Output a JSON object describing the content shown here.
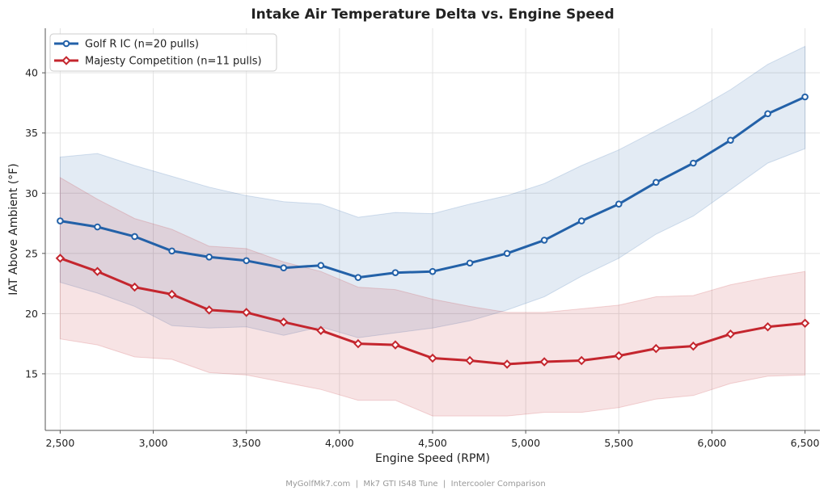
{
  "chart_data": {
    "type": "line",
    "title": "Intake Air Temperature Delta vs. Engine Speed",
    "xlabel": "Engine Speed (RPM)",
    "ylabel": "IAT Above Ambient (°F)",
    "xlim": [
      2420,
      6580
    ],
    "ylim": [
      10.3,
      43.7
    ],
    "x_ticks": [
      2500,
      3000,
      3500,
      4000,
      4500,
      5000,
      5500,
      6000,
      6500
    ],
    "x_tick_labels": [
      "2,500",
      "3,000",
      "3,500",
      "4,000",
      "4,500",
      "5,000",
      "5,500",
      "6,000",
      "6,500"
    ],
    "y_ticks": [
      15,
      20,
      25,
      30,
      35,
      40
    ],
    "y_tick_labels": [
      "15",
      "20",
      "25",
      "30",
      "35",
      "40"
    ],
    "grid": true,
    "legend_position": "top-left",
    "x": [
      2500,
      2700,
      2900,
      3100,
      3300,
      3500,
      3700,
      3900,
      4100,
      4300,
      4500,
      4700,
      4900,
      5100,
      5300,
      5500,
      5700,
      5900,
      6100,
      6300,
      6500
    ],
    "series": [
      {
        "name": "Golf R IC (n=20 pulls)",
        "color": "#2361a8",
        "marker": "circle",
        "values": [
          27.7,
          27.2,
          26.4,
          25.2,
          24.7,
          24.4,
          23.8,
          24.0,
          23.0,
          23.4,
          23.5,
          24.2,
          25.0,
          26.1,
          27.7,
          29.1,
          30.9,
          32.5,
          34.4,
          36.6,
          38.0
        ],
        "band_upper": [
          33.0,
          33.3,
          32.3,
          31.4,
          30.5,
          29.8,
          29.3,
          29.1,
          28.0,
          28.4,
          28.3,
          29.1,
          29.8,
          30.8,
          32.3,
          33.6,
          35.2,
          36.8,
          38.6,
          40.7,
          42.2
        ],
        "band_lower": [
          22.6,
          21.7,
          20.6,
          19.0,
          18.8,
          18.9,
          18.2,
          18.9,
          18.0,
          18.4,
          18.8,
          19.4,
          20.3,
          21.4,
          23.1,
          24.6,
          26.6,
          28.1,
          30.3,
          32.5,
          33.7
        ]
      },
      {
        "name": "Majesty Competition (n=11 pulls)",
        "color": "#c4262e",
        "marker": "diamond",
        "values": [
          24.6,
          23.5,
          22.2,
          21.6,
          20.3,
          20.1,
          19.3,
          18.6,
          17.5,
          17.4,
          16.3,
          16.1,
          15.8,
          16.0,
          16.1,
          16.5,
          17.1,
          17.3,
          18.3,
          18.9,
          19.2
        ],
        "band_upper": [
          31.3,
          29.5,
          27.9,
          27.0,
          25.6,
          25.4,
          24.3,
          23.5,
          22.2,
          22.0,
          21.2,
          20.6,
          20.1,
          20.1,
          20.4,
          20.7,
          21.4,
          21.5,
          22.4,
          23.0,
          23.5
        ],
        "band_lower": [
          17.9,
          17.4,
          16.4,
          16.2,
          15.1,
          14.9,
          14.3,
          13.7,
          12.8,
          12.8,
          11.5,
          11.5,
          11.5,
          11.8,
          11.8,
          12.2,
          12.9,
          13.2,
          14.2,
          14.8,
          14.9
        ]
      }
    ],
    "footer": "MyGolfMk7.com  |  Mk7 GTI IS48 Tune  |  Intercooler Comparison"
  }
}
